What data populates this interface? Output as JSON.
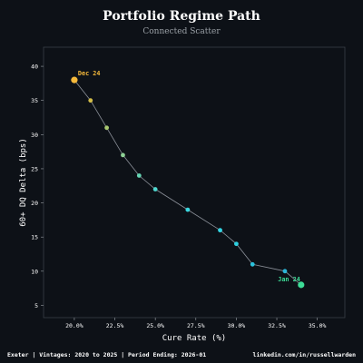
{
  "header": {
    "title": "Portfolio Regime Path",
    "subtitle": "Connected Scatter"
  },
  "footer": {
    "left": "Exeter | Vintages: 2020 to 2025 | Period Ending: 2026-01",
    "right": "linkedin.com/in/russellwarden"
  },
  "colors": {
    "background": "#0d1117",
    "frame": "#3a3f47",
    "text": "#ffffff",
    "path_line": "#8a8f98",
    "start_label": "#3ddc97",
    "end_label": "#f5b93b"
  },
  "chart_data": {
    "type": "scatter",
    "connected": true,
    "title": "Portfolio Regime Path",
    "subtitle": "Connected Scatter",
    "xlabel": "Cure Rate (%)",
    "ylabel": "60+ DQ Delta (bps)",
    "xlim": [
      18.1,
      36.7
    ],
    "ylim": [
      3.2,
      42.8
    ],
    "xticks": [
      20.0,
      22.5,
      25.0,
      27.5,
      30.0,
      32.5,
      35.0
    ],
    "xtick_labels": [
      "20.0%",
      "22.5%",
      "25.0%",
      "27.5%",
      "30.0%",
      "32.5%",
      "35.0%"
    ],
    "yticks": [
      5,
      10,
      15,
      20,
      25,
      30,
      35,
      40
    ],
    "ytick_labels": [
      "5",
      "10",
      "15",
      "20",
      "25",
      "30",
      "35",
      "40"
    ],
    "grid": false,
    "points": [
      {
        "x": 34.0,
        "y": 8.0,
        "color": "#3ddc97",
        "highlight": true
      },
      {
        "x": 33.0,
        "y": 10.0,
        "color": "#2bb5d6"
      },
      {
        "x": 31.0,
        "y": 11.0,
        "color": "#2bc2dc"
      },
      {
        "x": 30.0,
        "y": 14.0,
        "color": "#2fd0e0"
      },
      {
        "x": 29.0,
        "y": 16.0,
        "color": "#33d6e4"
      },
      {
        "x": 27.0,
        "y": 19.0,
        "color": "#3ad8e0"
      },
      {
        "x": 25.0,
        "y": 22.0,
        "color": "#4fd8d0"
      },
      {
        "x": 24.0,
        "y": 24.0,
        "color": "#66d6b4"
      },
      {
        "x": 23.0,
        "y": 27.0,
        "color": "#8ed196"
      },
      {
        "x": 22.0,
        "y": 31.0,
        "color": "#a8c870"
      },
      {
        "x": 21.0,
        "y": 35.0,
        "color": "#d2bd48"
      },
      {
        "x": 20.0,
        "y": 38.0,
        "color": "#f5b93b",
        "highlight": true
      }
    ],
    "annotations": [
      {
        "text": "Jan 24",
        "x": 34.0,
        "y": 8.0,
        "color": "#3ddc97",
        "anchor": "end"
      },
      {
        "text": "Dec 24",
        "x": 20.0,
        "y": 38.0,
        "color": "#f5b93b",
        "anchor": "start"
      }
    ]
  }
}
